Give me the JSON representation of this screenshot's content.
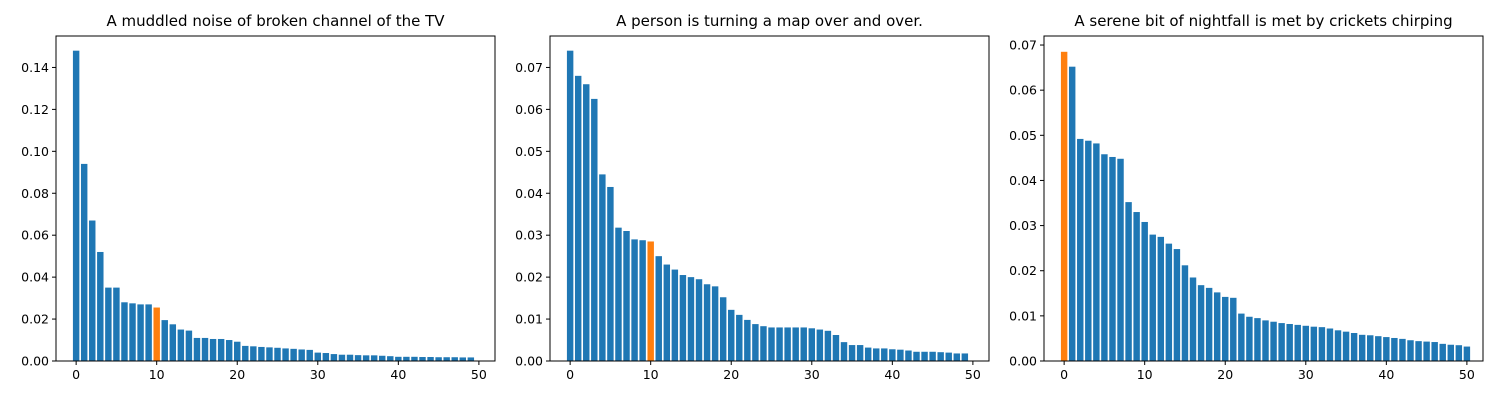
{
  "colors": {
    "bar": "#1f77b4",
    "highlight": "#ff7f0e",
    "axis": "#000000",
    "background": "#ffffff"
  },
  "chart_data": [
    {
      "type": "bar",
      "title": "A muddled noise of broken channel of the TV",
      "xlabel": "",
      "ylabel": "",
      "x_ticks": [
        0,
        10,
        20,
        30,
        40,
        50
      ],
      "y_ticks": [
        0.0,
        0.02,
        0.04,
        0.06,
        0.08,
        0.1,
        0.12,
        0.14
      ],
      "y_tick_labels": [
        "0.00",
        "0.02",
        "0.04",
        "0.06",
        "0.08",
        "0.10",
        "0.12",
        "0.14"
      ],
      "xlim": [
        -2.5,
        52
      ],
      "ylim": [
        0,
        0.155
      ],
      "highlight_index": 10,
      "grid": false,
      "values": [
        0.148,
        0.094,
        0.067,
        0.052,
        0.035,
        0.035,
        0.028,
        0.0275,
        0.027,
        0.027,
        0.0255,
        0.0195,
        0.0175,
        0.015,
        0.0145,
        0.011,
        0.011,
        0.0105,
        0.0105,
        0.01,
        0.0092,
        0.0072,
        0.007,
        0.0067,
        0.0065,
        0.0063,
        0.006,
        0.0058,
        0.0055,
        0.0053,
        0.004,
        0.0038,
        0.0033,
        0.003,
        0.003,
        0.0028,
        0.0027,
        0.0027,
        0.0025,
        0.0023,
        0.002,
        0.002,
        0.002,
        0.0019,
        0.0019,
        0.0018,
        0.0018,
        0.0018,
        0.0017,
        0.0017
      ]
    },
    {
      "type": "bar",
      "title": "A person is turning a map over and over.",
      "xlabel": "",
      "ylabel": "",
      "x_ticks": [
        0,
        10,
        20,
        30,
        40,
        50
      ],
      "y_ticks": [
        0.0,
        0.01,
        0.02,
        0.03,
        0.04,
        0.05,
        0.06,
        0.07
      ],
      "y_tick_labels": [
        "0.00",
        "0.01",
        "0.02",
        "0.03",
        "0.04",
        "0.05",
        "0.06",
        "0.07"
      ],
      "xlim": [
        -2.5,
        52
      ],
      "ylim": [
        0,
        0.0775
      ],
      "highlight_index": 10,
      "grid": false,
      "values": [
        0.074,
        0.068,
        0.066,
        0.0625,
        0.0445,
        0.0415,
        0.0318,
        0.031,
        0.029,
        0.0288,
        0.0285,
        0.025,
        0.023,
        0.0218,
        0.0205,
        0.02,
        0.0195,
        0.0183,
        0.0178,
        0.0152,
        0.0122,
        0.011,
        0.0098,
        0.0088,
        0.0083,
        0.008,
        0.008,
        0.008,
        0.008,
        0.008,
        0.0078,
        0.0075,
        0.0072,
        0.0062,
        0.0045,
        0.0038,
        0.0038,
        0.0032,
        0.003,
        0.003,
        0.0028,
        0.0027,
        0.0025,
        0.0022,
        0.0022,
        0.0022,
        0.0021,
        0.002,
        0.0018,
        0.0018
      ]
    },
    {
      "type": "bar",
      "title": "A serene bit of nightfall is met by crickets chirping",
      "xlabel": "",
      "ylabel": "",
      "x_ticks": [
        0,
        10,
        20,
        30,
        40,
        50
      ],
      "y_ticks": [
        0.0,
        0.01,
        0.02,
        0.03,
        0.04,
        0.05,
        0.06,
        0.07
      ],
      "y_tick_labels": [
        "0.00",
        "0.01",
        "0.02",
        "0.03",
        "0.04",
        "0.05",
        "0.06",
        "0.07"
      ],
      "xlim": [
        -2.5,
        52
      ],
      "ylim": [
        0,
        0.072
      ],
      "highlight_index": 0,
      "grid": false,
      "values": [
        0.0685,
        0.0652,
        0.0492,
        0.0488,
        0.0482,
        0.0458,
        0.0452,
        0.0448,
        0.0352,
        0.033,
        0.0308,
        0.028,
        0.0275,
        0.026,
        0.0248,
        0.0212,
        0.0185,
        0.0168,
        0.0162,
        0.0152,
        0.0142,
        0.014,
        0.0105,
        0.0098,
        0.0095,
        0.009,
        0.0087,
        0.0084,
        0.0082,
        0.008,
        0.0078,
        0.0076,
        0.0075,
        0.0072,
        0.0068,
        0.0065,
        0.0062,
        0.0058,
        0.0057,
        0.0055,
        0.0053,
        0.0051,
        0.0049,
        0.0046,
        0.0044,
        0.0043,
        0.0042,
        0.0038,
        0.0036,
        0.0035,
        0.0032
      ]
    }
  ]
}
